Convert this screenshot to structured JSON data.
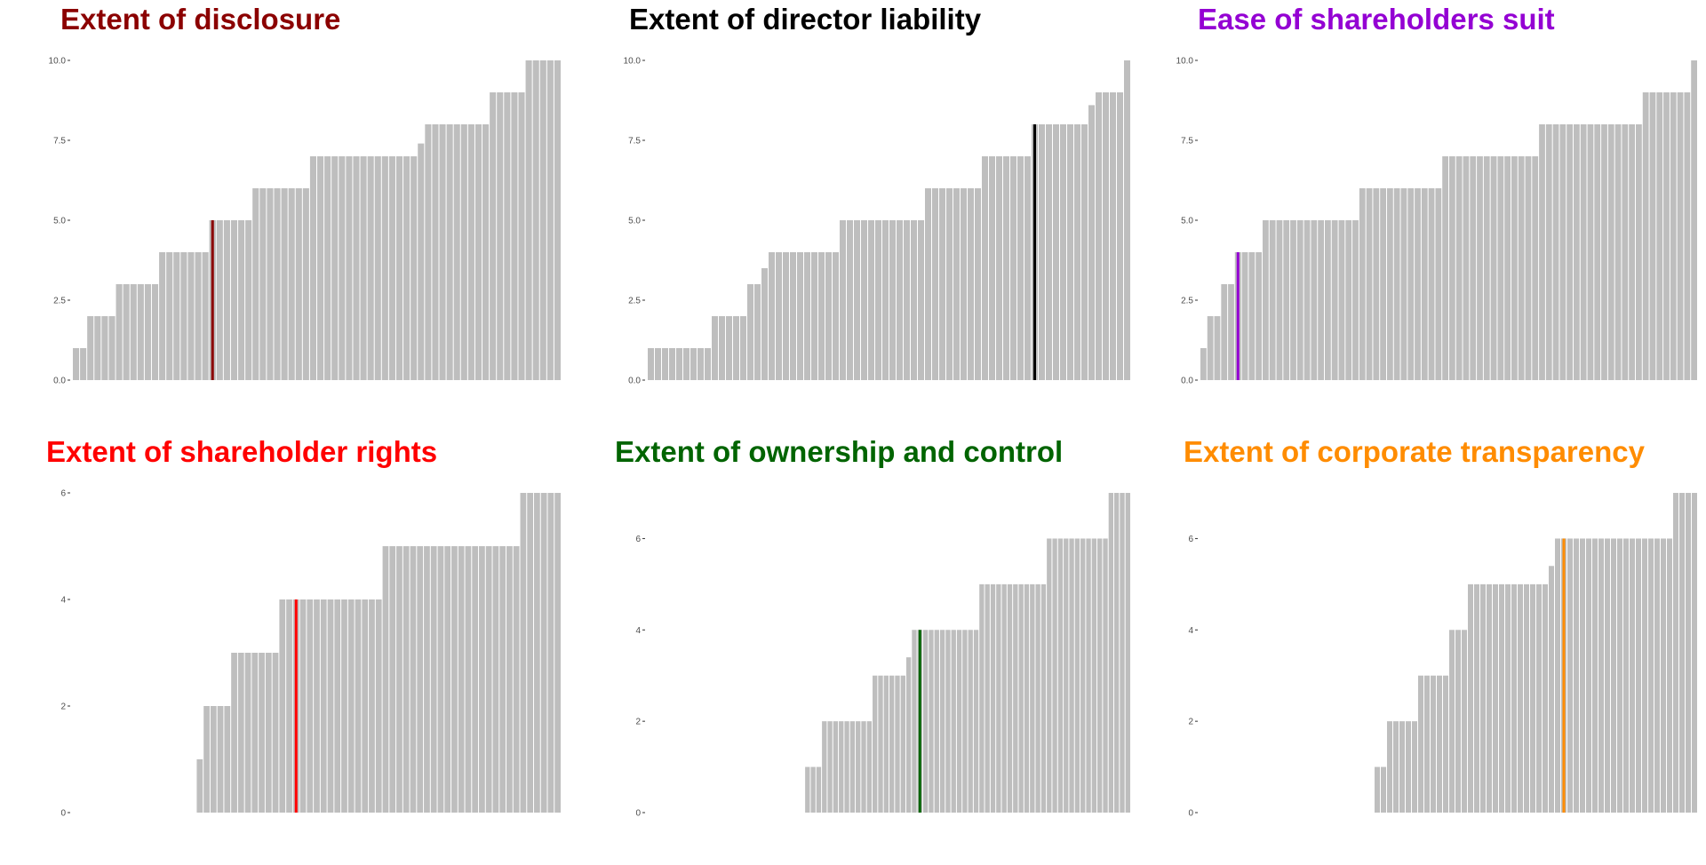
{
  "panels": [
    {
      "title": "Extent of disclosure",
      "title_color": "#8b0000",
      "highlight_color": "#8b0000",
      "chart_data": {
        "type": "bar",
        "ylim": [
          0,
          10
        ],
        "yticks": [
          "0.0",
          "2.5",
          "5.0",
          "7.5",
          "10.0"
        ],
        "yticks_values": [
          0,
          2.5,
          5,
          7.5,
          10
        ],
        "values": [
          1,
          1,
          2,
          2,
          2,
          2,
          3,
          3,
          3,
          3,
          3,
          3,
          4,
          4,
          4,
          4,
          4,
          4,
          4,
          5,
          5,
          5,
          5,
          5,
          5,
          6,
          6,
          6,
          6,
          6,
          6,
          6,
          6,
          7,
          7,
          7,
          7,
          7,
          7,
          7,
          7,
          7,
          7,
          7,
          7,
          7,
          7,
          7,
          7.4,
          8,
          8,
          8,
          8,
          8,
          8,
          8,
          8,
          8,
          9,
          9,
          9,
          9,
          9,
          10,
          10,
          10,
          10,
          10
        ],
        "highlight_index": 19
      }
    },
    {
      "title": "Extent of director liability",
      "title_color": "#000000",
      "highlight_color": "#000000",
      "chart_data": {
        "type": "bar",
        "ylim": [
          0,
          10
        ],
        "yticks": [
          "0.0",
          "2.5",
          "5.0",
          "7.5",
          "10.0"
        ],
        "yticks_values": [
          0,
          2.5,
          5,
          7.5,
          10
        ],
        "values": [
          1,
          1,
          1,
          1,
          1,
          1,
          1,
          1,
          1,
          2,
          2,
          2,
          2,
          2,
          3,
          3,
          3.5,
          4,
          4,
          4,
          4,
          4,
          4,
          4,
          4,
          4,
          4,
          5,
          5,
          5,
          5,
          5,
          5,
          5,
          5,
          5,
          5,
          5,
          5,
          6,
          6,
          6,
          6,
          6,
          6,
          6,
          6,
          7,
          7,
          7,
          7,
          7,
          7,
          7,
          8,
          8,
          8,
          8,
          8,
          8,
          8,
          8,
          8.6,
          9,
          9,
          9,
          9,
          10
        ],
        "highlight_index": 54
      }
    },
    {
      "title": "Ease of shareholders suit",
      "title_color": "#9400d3",
      "highlight_color": "#9400d3",
      "chart_data": {
        "type": "bar",
        "ylim": [
          0,
          10
        ],
        "yticks": [
          "0.0",
          "2.5",
          "5.0",
          "7.5",
          "10.0"
        ],
        "yticks_values": [
          0,
          2.5,
          5,
          7.5,
          10
        ],
        "values": [
          1,
          2,
          2,
          3,
          3,
          4,
          4,
          4,
          4,
          5,
          5,
          5,
          5,
          5,
          5,
          5,
          5,
          5,
          5,
          5,
          5,
          5,
          5,
          6,
          6,
          6,
          6,
          6,
          6,
          6,
          6,
          6,
          6,
          6,
          6,
          7,
          7,
          7,
          7,
          7,
          7,
          7,
          7,
          7,
          7,
          7,
          7,
          7,
          7,
          8,
          8,
          8,
          8,
          8,
          8,
          8,
          8,
          8,
          8,
          8,
          8,
          8,
          8,
          8,
          9,
          9,
          9,
          9,
          9,
          9,
          9,
          10
        ],
        "highlight_index": 5
      }
    },
    {
      "title": "Extent of shareholder rights",
      "title_color": "#ff0000",
      "highlight_color": "#ff0000",
      "chart_data": {
        "type": "bar",
        "ylim": [
          0,
          6
        ],
        "yticks": [
          "0",
          "2",
          "4",
          "6"
        ],
        "yticks_values": [
          0,
          2,
          4,
          6
        ],
        "values": [
          0,
          0,
          0,
          0,
          0,
          0,
          0,
          0,
          0,
          0,
          0,
          0,
          0,
          0,
          0,
          0,
          0,
          0,
          1,
          2,
          2,
          2,
          2,
          3,
          3,
          3,
          3,
          3,
          3,
          3,
          4,
          4,
          4,
          4,
          4,
          4,
          4,
          4,
          4,
          4,
          4,
          4,
          4,
          4,
          4,
          5,
          5,
          5,
          5,
          5,
          5,
          5,
          5,
          5,
          5,
          5,
          5,
          5,
          5,
          5,
          5,
          5,
          5,
          5,
          5,
          6,
          6,
          6,
          6,
          6,
          6
        ],
        "highlight_index": 32
      }
    },
    {
      "title": "Extent of ownership and control",
      "title_color": "#006400",
      "highlight_color": "#006400",
      "chart_data": {
        "type": "bar",
        "ylim": [
          0,
          7
        ],
        "yticks": [
          "0",
          "2",
          "4",
          "6"
        ],
        "yticks_values": [
          0,
          2,
          4,
          6
        ],
        "values": [
          0,
          0,
          0,
          0,
          0,
          0,
          0,
          0,
          0,
          0,
          0,
          0,
          0,
          0,
          0,
          0,
          0,
          0,
          0,
          0,
          0,
          0,
          0,
          0,
          0,
          0,
          0,
          0,
          1,
          1,
          1,
          2,
          2,
          2,
          2,
          2,
          2,
          2,
          2,
          2,
          3,
          3,
          3,
          3,
          3,
          3,
          3.4,
          4,
          4,
          4,
          4,
          4,
          4,
          4,
          4,
          4,
          4,
          4,
          4,
          5,
          5,
          5,
          5,
          5,
          5,
          5,
          5,
          5,
          5,
          5,
          5,
          6,
          6,
          6,
          6,
          6,
          6,
          6,
          6,
          6,
          6,
          6,
          7,
          7,
          7,
          7
        ],
        "highlight_index": 48
      }
    },
    {
      "title": "Extent of corporate transparency",
      "title_color": "#ff8c00",
      "highlight_color": "#ff8c00",
      "chart_data": {
        "type": "bar",
        "ylim": [
          0,
          7
        ],
        "yticks": [
          "0",
          "2",
          "4",
          "6"
        ],
        "yticks_values": [
          0,
          2,
          4,
          6
        ],
        "values": [
          0,
          0,
          0,
          0,
          0,
          0,
          0,
          0,
          0,
          0,
          0,
          0,
          0,
          0,
          0,
          0,
          0,
          0,
          0,
          0,
          0,
          0,
          0,
          0,
          0,
          0,
          0,
          0,
          1,
          1,
          2,
          2,
          2,
          2,
          2,
          3,
          3,
          3,
          3,
          3,
          4,
          4,
          4,
          5,
          5,
          5,
          5,
          5,
          5,
          5,
          5,
          5,
          5,
          5,
          5,
          5,
          5.4,
          6,
          6,
          6,
          6,
          6,
          6,
          6,
          6,
          6,
          6,
          6,
          6,
          6,
          6,
          6,
          6,
          6,
          6,
          6,
          7,
          7,
          7,
          7
        ],
        "highlight_index": 58
      }
    }
  ]
}
